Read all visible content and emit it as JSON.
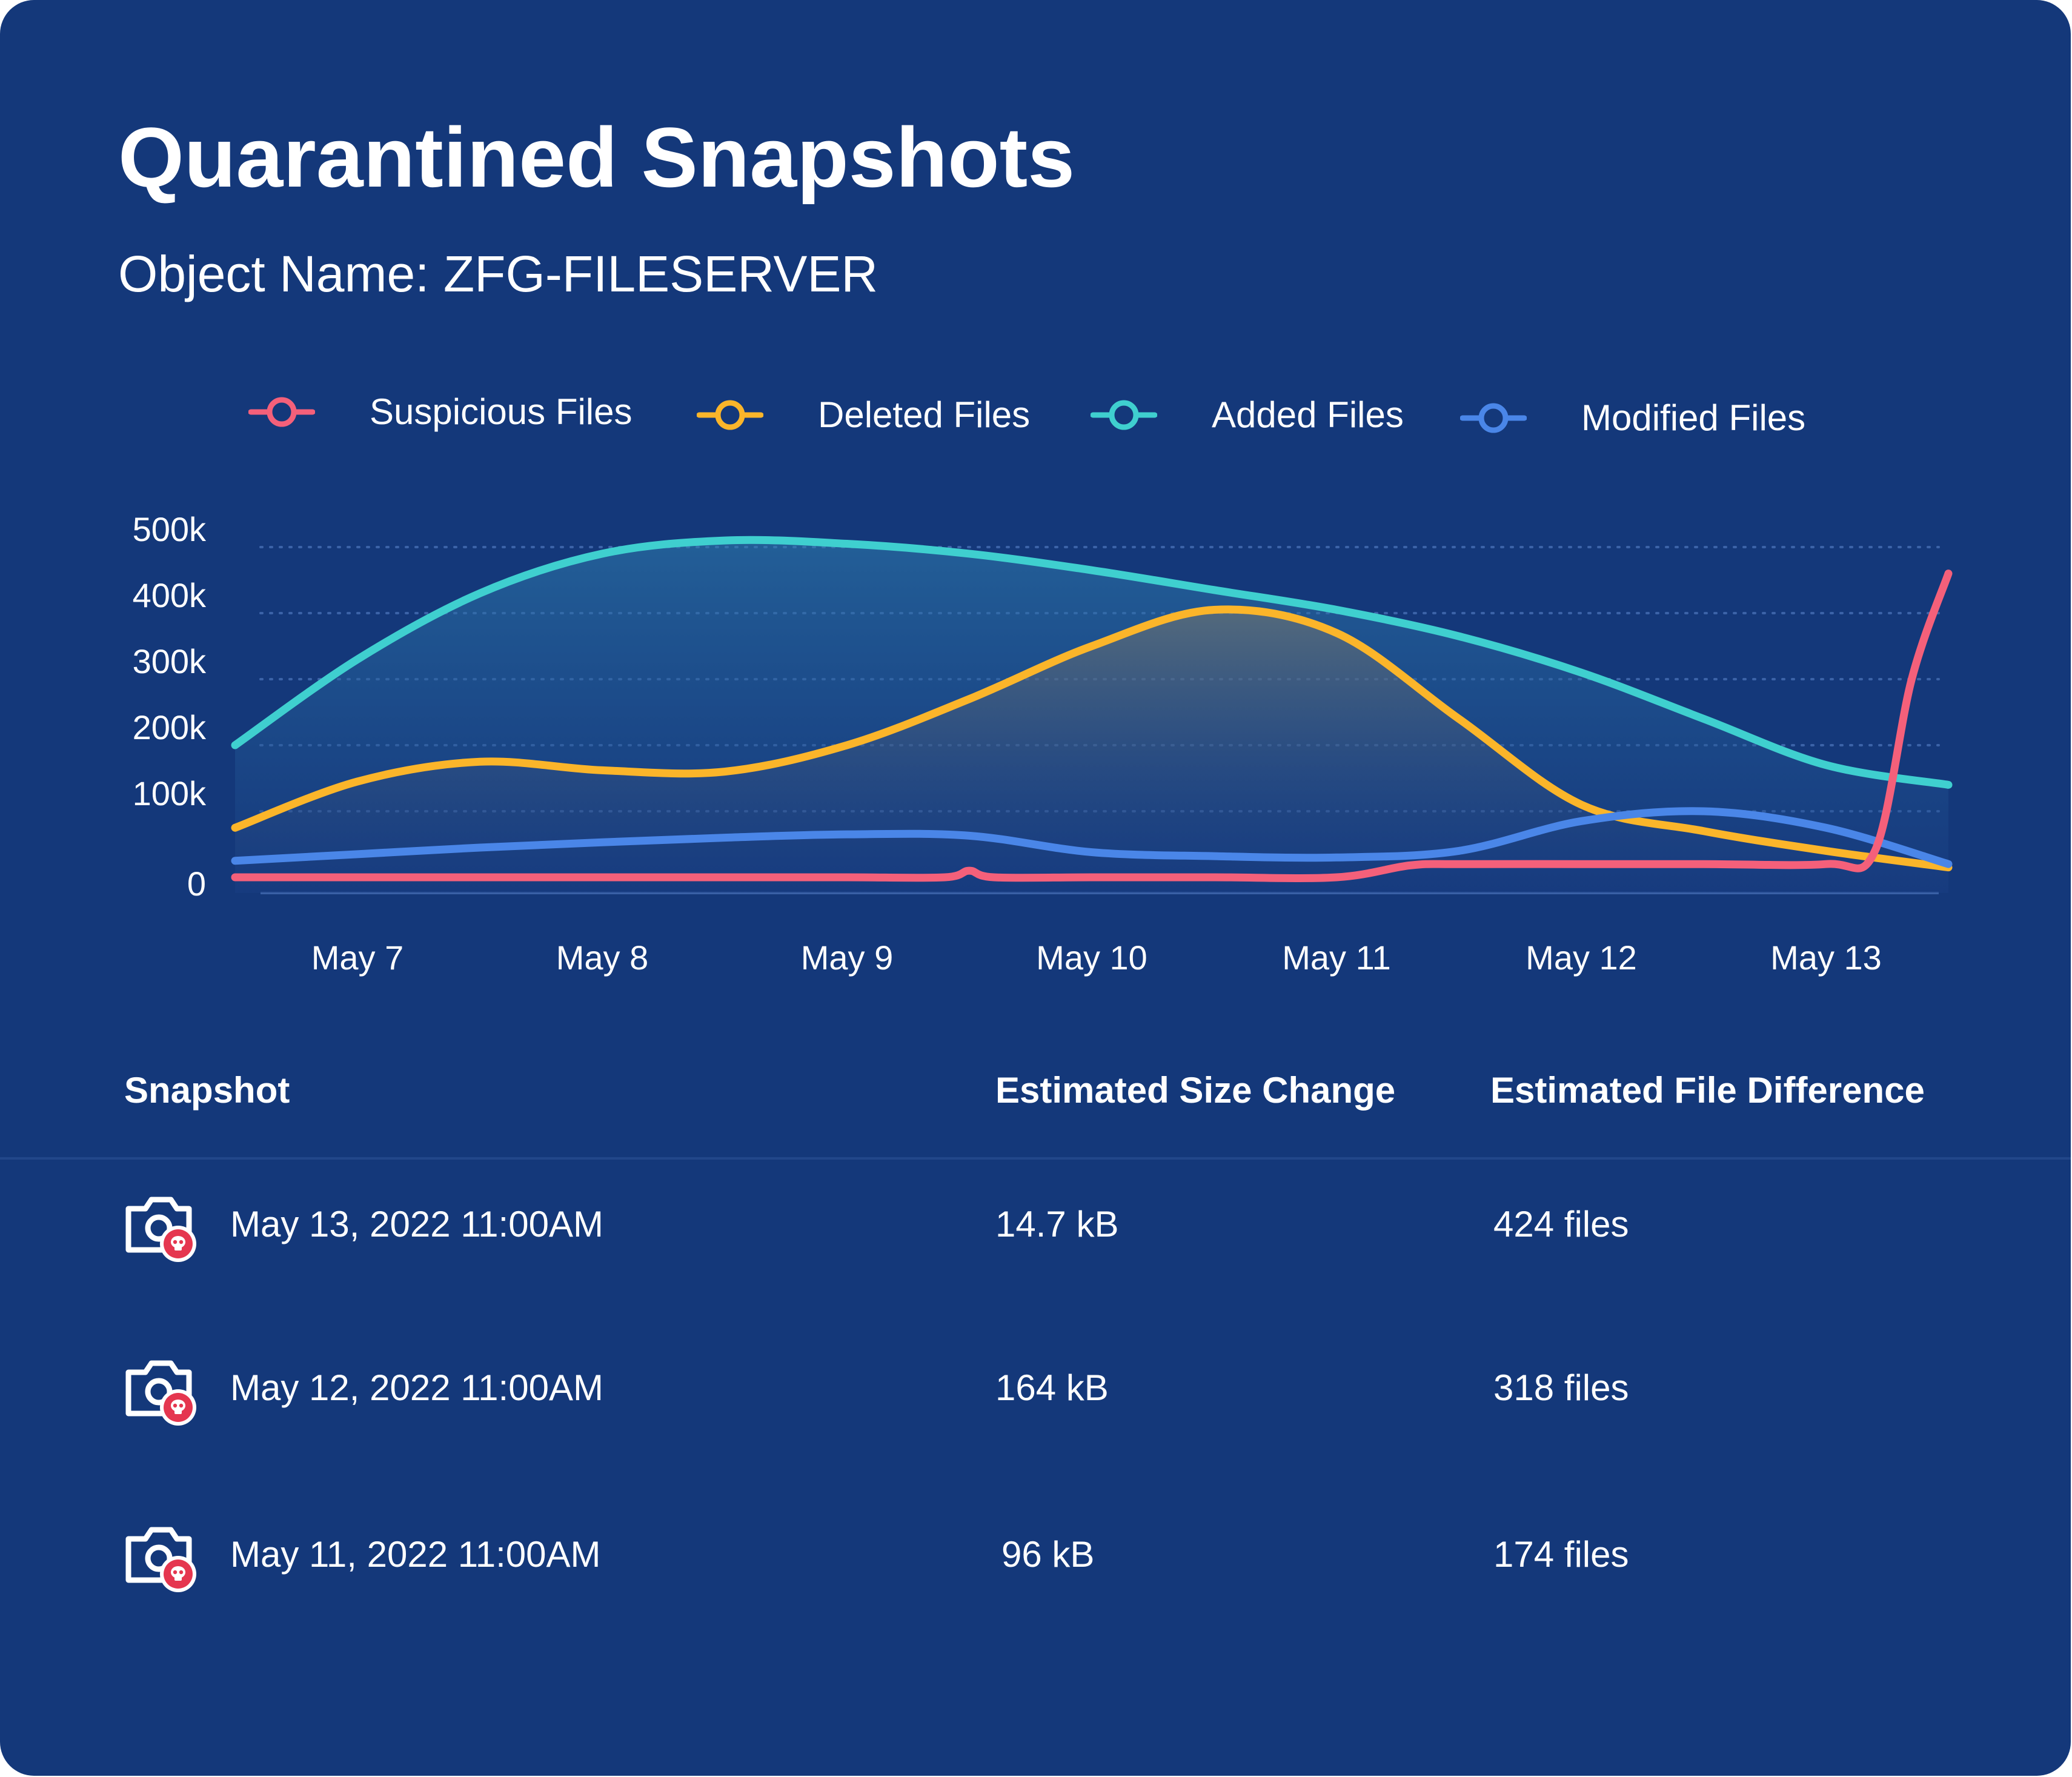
{
  "header": {
    "title": "Quarantined Snapshots",
    "subtitle": "Object Name: ZFG-FILESERVER"
  },
  "colors": {
    "background": "#14387a",
    "suspicious": "#f4607a",
    "deleted": "#fbb52a",
    "added": "#3fcfcf",
    "modified": "#4a86e8",
    "text": "#ffffff"
  },
  "legend": [
    {
      "label": "Suspicious Files",
      "color": "#f4607a"
    },
    {
      "label": "Deleted Files",
      "color": "#fbb52a"
    },
    {
      "label": "Added Files",
      "color": "#3fcfcf"
    },
    {
      "label": "Modified Files",
      "color": "#4a86e8"
    }
  ],
  "chart_data": {
    "type": "area",
    "categories": [
      "May 7",
      "May 8",
      "May 9",
      "May 10",
      "May 11",
      "May 12",
      "May 13"
    ],
    "y_ticks": [
      "0",
      "100k",
      "200k",
      "300k",
      "400k",
      "500k"
    ],
    "ylim": [
      0,
      500000
    ],
    "grid": "dotted horizontal",
    "legend_position": "top",
    "series": [
      {
        "name": "Added Files",
        "color": "#3fcfcf",
        "points": [
          [
            6.5,
            200000
          ],
          [
            7,
            330000
          ],
          [
            7.5,
            430000
          ],
          [
            8,
            490000
          ],
          [
            8.5,
            510000
          ],
          [
            9,
            505000
          ],
          [
            9.5,
            490000
          ],
          [
            10,
            465000
          ],
          [
            10.5,
            435000
          ],
          [
            11,
            405000
          ],
          [
            11.5,
            365000
          ],
          [
            12,
            310000
          ],
          [
            12.5,
            240000
          ],
          [
            13,
            170000
          ],
          [
            13.5,
            140000
          ]
        ]
      },
      {
        "name": "Deleted Files",
        "color": "#fbb52a",
        "points": [
          [
            6.5,
            75000
          ],
          [
            7,
            145000
          ],
          [
            7.5,
            175000
          ],
          [
            8,
            162000
          ],
          [
            8.5,
            160000
          ],
          [
            9,
            200000
          ],
          [
            9.5,
            270000
          ],
          [
            10,
            350000
          ],
          [
            10.5,
            405000
          ],
          [
            11,
            370000
          ],
          [
            11.5,
            240000
          ],
          [
            12,
            110000
          ],
          [
            12.5,
            70000
          ],
          [
            13,
            40000
          ],
          [
            13.5,
            15000
          ]
        ]
      },
      {
        "name": "Modified Files",
        "color": "#4a86e8",
        "points": [
          [
            6.5,
            25000
          ],
          [
            7,
            35000
          ],
          [
            7.5,
            45000
          ],
          [
            8,
            53000
          ],
          [
            8.5,
            60000
          ],
          [
            9,
            65000
          ],
          [
            9.5,
            63000
          ],
          [
            10,
            38000
          ],
          [
            10.5,
            32000
          ],
          [
            11,
            30000
          ],
          [
            11.5,
            40000
          ],
          [
            12,
            85000
          ],
          [
            12.5,
            100000
          ],
          [
            13,
            75000
          ],
          [
            13.5,
            20000
          ]
        ]
      },
      {
        "name": "Suspicious Files",
        "color": "#f4607a",
        "points": [
          [
            6.5,
            0
          ],
          [
            7,
            0
          ],
          [
            7.5,
            0
          ],
          [
            8,
            0
          ],
          [
            8.5,
            0
          ],
          [
            9,
            0
          ],
          [
            9.4,
            0
          ],
          [
            9.5,
            10000
          ],
          [
            9.6,
            0
          ],
          [
            10,
            0
          ],
          [
            10.5,
            0
          ],
          [
            11,
            0
          ],
          [
            11.3,
            18000
          ],
          [
            11.5,
            20000
          ],
          [
            12,
            20000
          ],
          [
            12.5,
            20000
          ],
          [
            13,
            20000
          ],
          [
            13.2,
            40000
          ],
          [
            13.35,
            300000
          ],
          [
            13.5,
            460000
          ]
        ]
      }
    ]
  },
  "table": {
    "headers": [
      "Snapshot",
      "Estimated Size Change",
      "Estimated File Difference"
    ],
    "rows": [
      {
        "icon": "quarantined-snapshot-icon",
        "snapshot": "May 13, 2022 11:00AM",
        "size": "14.7 kB",
        "files": "424 files"
      },
      {
        "icon": "quarantined-snapshot-icon",
        "snapshot": "May 12, 2022 11:00AM",
        "size": "164 kB",
        "files": "318 files"
      },
      {
        "icon": "quarantined-snapshot-icon",
        "snapshot": "May 11, 2022 11:00AM",
        "size": "96 kB",
        "files": "174 files"
      }
    ]
  }
}
